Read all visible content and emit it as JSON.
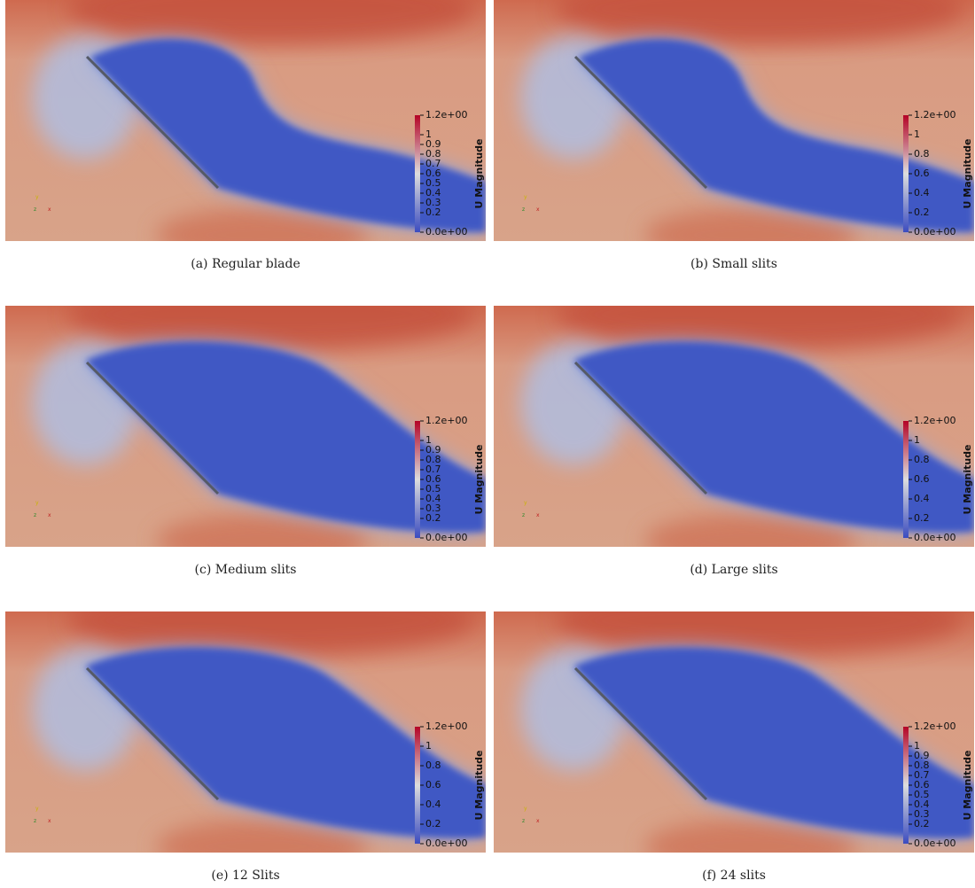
{
  "panels": [
    {
      "caption": "(a) Regular blade",
      "axes": {
        "x": "x",
        "y": "y",
        "z": "z"
      },
      "colorbar": {
        "title": "U Magnitude",
        "ticks": [
          {
            "value": 1.2,
            "label": "1.2e+00"
          },
          1,
          0.9,
          0.8,
          0.7,
          0.6,
          0.5,
          0.4,
          0.3,
          0.2,
          {
            "value": 0,
            "label": "0.0e+00"
          }
        ]
      }
    },
    {
      "caption": "(b) Small slits",
      "axes": {
        "x": "x",
        "y": "y",
        "z": "z"
      },
      "colorbar": {
        "title": "U Magnitude",
        "ticks": [
          {
            "value": 1.2,
            "label": "1.2e+00"
          },
          1,
          0.8,
          0.6,
          0.4,
          0.2,
          {
            "value": 0,
            "label": "0.0e+00"
          }
        ]
      }
    },
    {
      "caption": "(c) Medium slits",
      "axes": {
        "x": "x",
        "y": "y",
        "z": "z"
      },
      "colorbar": {
        "title": "U Magnitude",
        "ticks": [
          {
            "value": 1.2,
            "label": "1.2e+00"
          },
          1,
          0.9,
          0.8,
          0.7,
          0.6,
          0.5,
          0.4,
          0.3,
          0.2,
          {
            "value": 0,
            "label": "0.0e+00"
          }
        ]
      }
    },
    {
      "caption": "(d) Large slits",
      "axes": {
        "x": "x",
        "y": "y",
        "z": "z"
      },
      "colorbar": {
        "title": "U Magnitude",
        "ticks": [
          {
            "value": 1.2,
            "label": "1.2e+00"
          },
          1,
          0.8,
          0.6,
          0.4,
          0.2,
          {
            "value": 0,
            "label": "0.0e+00"
          }
        ]
      }
    },
    {
      "caption": "(e) 12 Slits",
      "axes": {
        "x": "x",
        "y": "y",
        "z": "z"
      },
      "colorbar": {
        "title": "U Magnitude",
        "ticks": [
          {
            "value": 1.2,
            "label": "1.2e+00"
          },
          1,
          0.8,
          0.6,
          0.4,
          0.2,
          {
            "value": 0,
            "label": "0.0e+00"
          }
        ]
      }
    },
    {
      "caption": "(f) 24 slits",
      "axes": {
        "x": "x",
        "y": "y",
        "z": "z"
      },
      "colorbar": {
        "title": "U Magnitude",
        "ticks": [
          {
            "value": 1.2,
            "label": "1.2e+00"
          },
          1,
          0.9,
          0.8,
          0.7,
          0.6,
          0.5,
          0.4,
          0.3,
          0.2,
          {
            "value": 0,
            "label": "0.0e+00"
          }
        ]
      }
    }
  ]
}
